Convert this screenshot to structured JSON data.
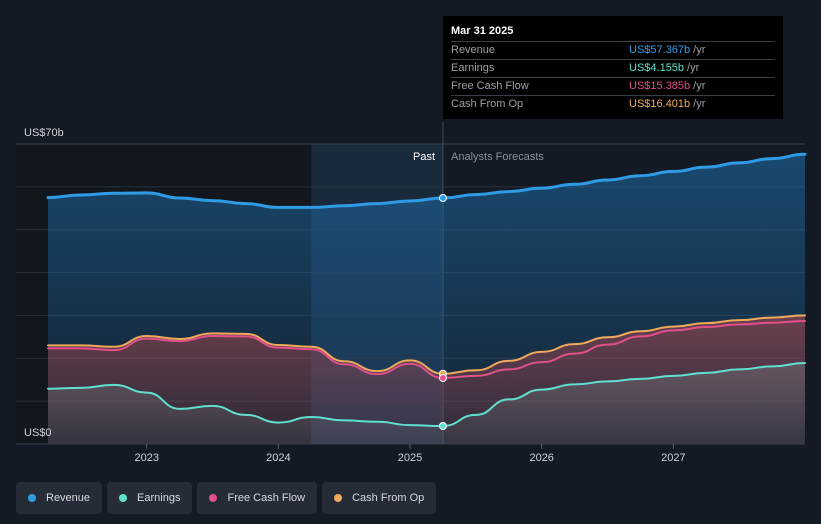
{
  "tooltip": {
    "date": "Mar 31 2025",
    "rows": [
      {
        "label": "Revenue",
        "value": "US$57.367b",
        "unit": "/yr",
        "color": "#2f9be6"
      },
      {
        "label": "Earnings",
        "value": "US$4.155b",
        "unit": "/yr",
        "color": "#5fe0cf"
      },
      {
        "label": "Free Cash Flow",
        "value": "US$15.385b",
        "unit": "/yr",
        "color": "#e0508a"
      },
      {
        "label": "Cash From Op",
        "value": "US$16.401b",
        "unit": "/yr",
        "color": "#f0a95b"
      }
    ]
  },
  "legend": [
    {
      "label": "Revenue",
      "color": "#2f9be6"
    },
    {
      "label": "Earnings",
      "color": "#5fe0cf"
    },
    {
      "label": "Free Cash Flow",
      "color": "#e0508a"
    },
    {
      "label": "Cash From Op",
      "color": "#f0a95b"
    }
  ],
  "chart_data": {
    "type": "area",
    "title": "",
    "ylabel_top": "US$70b",
    "ylabel_bottom": "US$0",
    "ylim": [
      0,
      70
    ],
    "xlim": [
      2022.25,
      2028.0
    ],
    "x_ticks": [
      "2023",
      "2024",
      "2025",
      "2026",
      "2027"
    ],
    "x_tick_values": [
      2023,
      2024,
      2025,
      2026,
      2027
    ],
    "past_label": "Past",
    "forecast_label": "Analysts Forecasts",
    "divider_x": 2025.25,
    "highlight_start_x": 2024.25,
    "series": [
      {
        "name": "Revenue",
        "color": "#2f9be6",
        "width": 3,
        "x": [
          2022.25,
          2022.5,
          2022.75,
          2023.0,
          2023.25,
          2023.5,
          2023.75,
          2024.0,
          2024.25,
          2024.5,
          2024.75,
          2025.0,
          2025.25,
          2025.5,
          2025.75,
          2026.0,
          2026.25,
          2026.5,
          2026.75,
          2027.0,
          2027.25,
          2027.5,
          2027.75,
          2028.0
        ],
        "y": [
          57.5,
          58.1,
          58.5,
          58.6,
          57.4,
          56.8,
          56.1,
          55.2,
          55.2,
          55.6,
          56.1,
          56.7,
          57.4,
          58.2,
          58.9,
          59.7,
          60.6,
          61.6,
          62.6,
          63.6,
          64.6,
          65.6,
          66.6,
          67.6
        ]
      },
      {
        "name": "Cash From Op",
        "color": "#f0a95b",
        "width": 2,
        "x": [
          2022.25,
          2022.5,
          2022.75,
          2023.0,
          2023.25,
          2023.5,
          2023.75,
          2024.0,
          2024.25,
          2024.5,
          2024.75,
          2025.0,
          2025.25,
          2025.5,
          2025.75,
          2026.0,
          2026.25,
          2026.5,
          2026.75,
          2027.0,
          2027.25,
          2027.5,
          2027.75,
          2028.0
        ],
        "y": [
          23.0,
          23.0,
          22.7,
          25.2,
          24.5,
          25.8,
          25.7,
          23.1,
          22.7,
          19.3,
          17.0,
          19.5,
          16.4,
          17.2,
          19.4,
          21.5,
          23.3,
          24.9,
          26.3,
          27.4,
          28.2,
          28.9,
          29.5,
          30.0
        ]
      },
      {
        "name": "Free Cash Flow",
        "color": "#e0508a",
        "width": 2,
        "x": [
          2022.25,
          2022.5,
          2022.75,
          2023.0,
          2023.25,
          2023.5,
          2023.75,
          2024.0,
          2024.25,
          2024.5,
          2024.75,
          2025.0,
          2025.25,
          2025.5,
          2025.75,
          2026.0,
          2026.25,
          2026.5,
          2026.75,
          2027.0,
          2027.25,
          2027.5,
          2027.75,
          2028.0
        ],
        "y": [
          22.3,
          22.3,
          21.9,
          24.6,
          24.0,
          25.2,
          25.1,
          22.5,
          22.1,
          18.6,
          16.3,
          18.7,
          15.4,
          15.9,
          17.4,
          19.1,
          21.1,
          23.2,
          25.1,
          26.5,
          27.3,
          27.9,
          28.3,
          28.7
        ]
      },
      {
        "name": "Earnings",
        "color": "#5fe0cf",
        "width": 2,
        "x": [
          2022.25,
          2022.5,
          2022.75,
          2023.0,
          2023.25,
          2023.5,
          2023.75,
          2024.0,
          2024.25,
          2024.5,
          2024.75,
          2025.0,
          2025.25,
          2025.5,
          2025.75,
          2026.0,
          2026.25,
          2026.5,
          2026.75,
          2027.0,
          2027.25,
          2027.5,
          2027.75,
          2028.0
        ],
        "y": [
          12.9,
          13.1,
          13.8,
          12.0,
          8.2,
          8.9,
          6.8,
          5.0,
          6.3,
          5.5,
          5.2,
          4.4,
          4.2,
          6.8,
          10.4,
          12.7,
          13.9,
          14.6,
          15.2,
          15.9,
          16.6,
          17.4,
          18.1,
          18.9
        ]
      }
    ]
  }
}
